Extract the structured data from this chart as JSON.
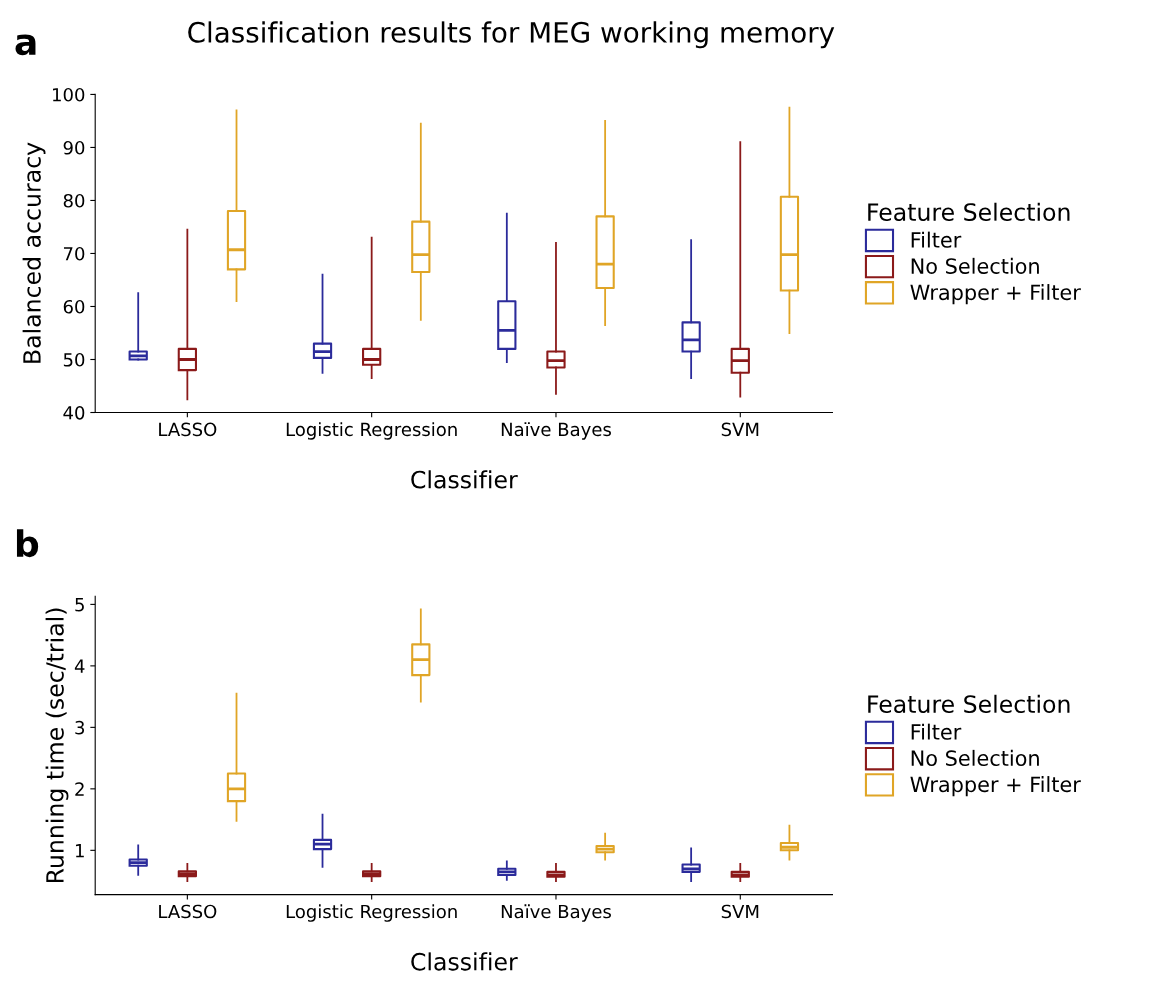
{
  "chart_data": [
    {
      "type": "box",
      "title": "Classification results for MEG working memory",
      "annotations": [
        "a"
      ],
      "xlabel": "Classifier",
      "ylabel": "Balanced accuracy",
      "legend_title": "Feature Selection",
      "legend": "right",
      "grid": false,
      "categories": [
        "LASSO",
        "Logistic Regression",
        "Naïve Bayes",
        "SVM"
      ],
      "ylim": [
        40,
        100
      ],
      "yticks": [
        40,
        50,
        60,
        70,
        80,
        90,
        100
      ],
      "series": [
        {
          "name": "Filter",
          "color": "#2b2b9b",
          "boxes": [
            {
              "low": 50,
              "q1": 50,
              "median": 50.7,
              "q3": 51.5,
              "high": 62.5
            },
            {
              "low": 47.5,
              "q1": 50.3,
              "median": 51.5,
              "q3": 53,
              "high": 66
            },
            {
              "low": 49.5,
              "q1": 52,
              "median": 55.5,
              "q3": 61,
              "high": 77.5
            },
            {
              "low": 46.5,
              "q1": 51.5,
              "median": 53.7,
              "q3": 57,
              "high": 72.5
            }
          ]
        },
        {
          "name": "No Selection",
          "color": "#8b1a1a",
          "boxes": [
            {
              "low": 42.5,
              "q1": 48,
              "median": 50,
              "q3": 52,
              "high": 74.5
            },
            {
              "low": 46.5,
              "q1": 49,
              "median": 50,
              "q3": 52,
              "high": 73
            },
            {
              "low": 43.5,
              "q1": 48.5,
              "median": 49.8,
              "q3": 51.5,
              "high": 72
            },
            {
              "low": 43,
              "q1": 47.5,
              "median": 49.8,
              "q3": 52,
              "high": 91
            }
          ]
        },
        {
          "name": "Wrapper + Filter",
          "color": "#e0a526",
          "boxes": [
            {
              "low": 61,
              "q1": 67,
              "median": 70.7,
              "q3": 78,
              "high": 97
            },
            {
              "low": 57.5,
              "q1": 66.5,
              "median": 69.8,
              "q3": 76,
              "high": 94.5
            },
            {
              "low": 56.5,
              "q1": 63.5,
              "median": 68,
              "q3": 77,
              "high": 95
            },
            {
              "low": 55,
              "q1": 63,
              "median": 69.8,
              "q3": 80.7,
              "high": 97.5
            }
          ]
        }
      ]
    },
    {
      "type": "box",
      "annotations": [
        "b"
      ],
      "xlabel": "Classifier",
      "ylabel": "Running time (sec/trial)",
      "legend_title": "Feature Selection",
      "legend": "right",
      "grid": false,
      "categories": [
        "LASSO",
        "Logistic Regression",
        "Naïve Bayes",
        "SVM"
      ],
      "ylim": [
        0.28,
        5.13
      ],
      "yticks": [
        1,
        2,
        3,
        4,
        5
      ],
      "series": [
        {
          "name": "Filter",
          "color": "#2b2b9b",
          "boxes": [
            {
              "low": 0.6,
              "q1": 0.75,
              "median": 0.8,
              "q3": 0.85,
              "high": 1.08
            },
            {
              "low": 0.73,
              "q1": 1.02,
              "median": 1.1,
              "q3": 1.17,
              "high": 1.58
            },
            {
              "low": 0.52,
              "q1": 0.6,
              "median": 0.65,
              "q3": 0.7,
              "high": 0.82
            },
            {
              "low": 0.5,
              "q1": 0.65,
              "median": 0.7,
              "q3": 0.77,
              "high": 1.03
            }
          ]
        },
        {
          "name": "No Selection",
          "color": "#8b1a1a",
          "boxes": [
            {
              "low": 0.5,
              "q1": 0.58,
              "median": 0.62,
              "q3": 0.66,
              "high": 0.78
            },
            {
              "low": 0.5,
              "q1": 0.58,
              "median": 0.62,
              "q3": 0.66,
              "high": 0.78
            },
            {
              "low": 0.5,
              "q1": 0.57,
              "median": 0.6,
              "q3": 0.65,
              "high": 0.78
            },
            {
              "low": 0.5,
              "q1": 0.57,
              "median": 0.6,
              "q3": 0.65,
              "high": 0.78
            }
          ]
        },
        {
          "name": "Wrapper + Filter",
          "color": "#e0a526",
          "boxes": [
            {
              "low": 1.48,
              "q1": 1.8,
              "median": 2.0,
              "q3": 2.25,
              "high": 3.55
            },
            {
              "low": 3.42,
              "q1": 3.85,
              "median": 4.1,
              "q3": 4.35,
              "high": 4.92
            },
            {
              "low": 0.85,
              "q1": 0.97,
              "median": 1.02,
              "q3": 1.07,
              "high": 1.27
            },
            {
              "low": 0.85,
              "q1": 1.0,
              "median": 1.05,
              "q3": 1.12,
              "high": 1.4
            }
          ]
        }
      ]
    }
  ]
}
